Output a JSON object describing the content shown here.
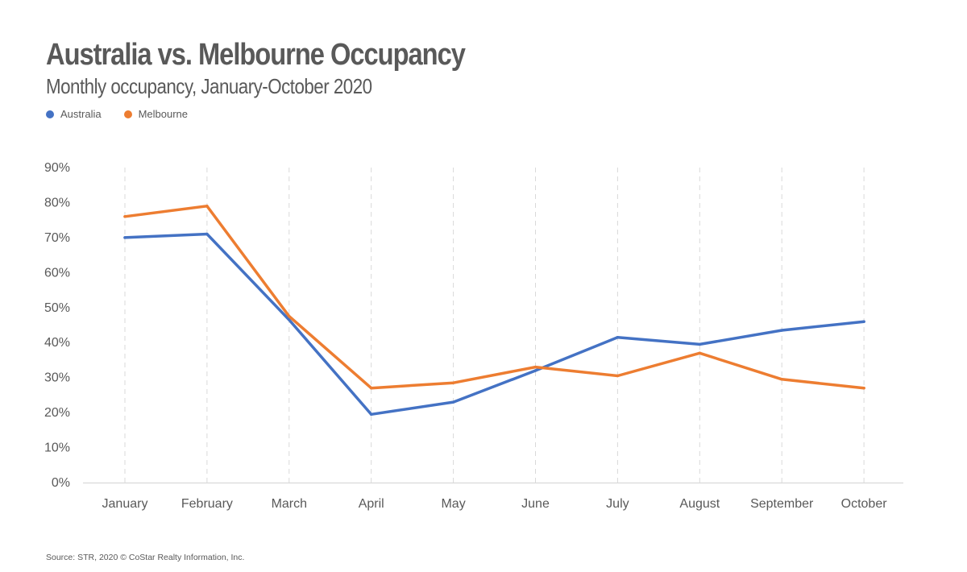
{
  "chart_data": {
    "type": "line",
    "title": "Australia vs. Melbourne Occupancy",
    "subtitle": "Monthly occupancy, January-October 2020",
    "categories": [
      "January",
      "February",
      "March",
      "April",
      "May",
      "June",
      "July",
      "August",
      "September",
      "October"
    ],
    "series": [
      {
        "name": "Australia",
        "color": "#4472c4",
        "values": [
          70,
          71,
          46.5,
          19.5,
          23,
          32,
          41.5,
          39.5,
          43.5,
          46
        ]
      },
      {
        "name": "Melbourne",
        "color": "#ed7d31",
        "values": [
          76,
          79,
          47.5,
          27,
          28.5,
          33,
          30.5,
          37,
          29.5,
          27
        ]
      }
    ],
    "ylim": [
      0,
      90
    ],
    "yticks": [
      0,
      10,
      20,
      30,
      40,
      50,
      60,
      70,
      80,
      90
    ],
    "ytick_labels": [
      "0%",
      "10%",
      "20%",
      "30%",
      "40%",
      "50%",
      "60%",
      "70%",
      "80%",
      "90%"
    ],
    "xlabel": "",
    "ylabel": "",
    "legend_position": "top-left",
    "grid": "vertical-dashed"
  },
  "source": "Source: STR, 2020 © CoStar Realty Information, Inc."
}
